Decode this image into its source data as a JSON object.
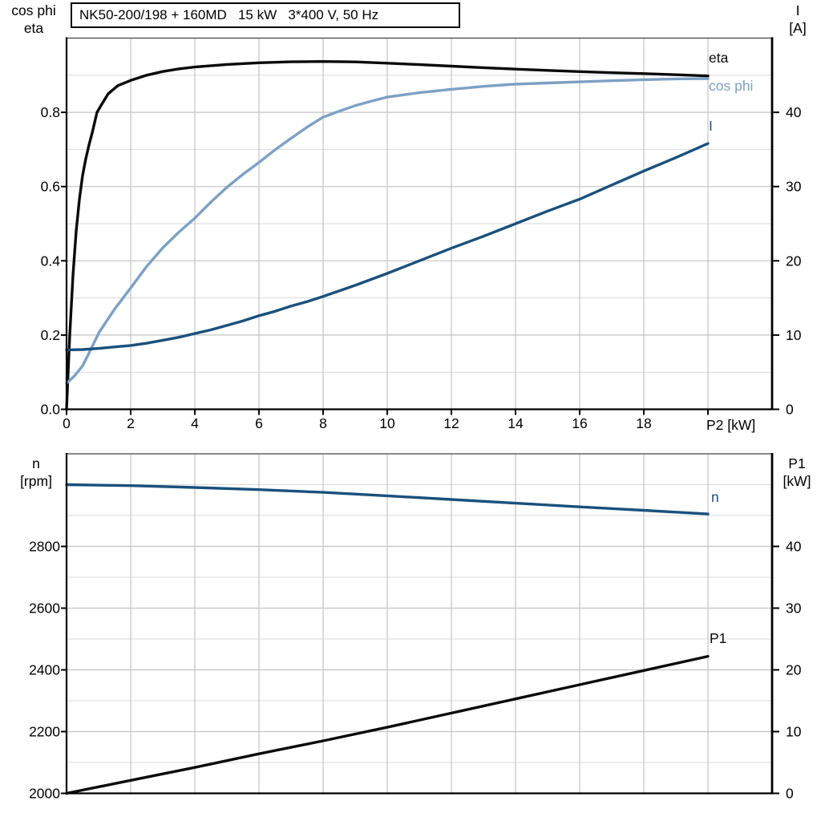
{
  "colors": {
    "black": "#0a0a0a",
    "dark_blue": "#1A507C",
    "light_blue": "#7DA0C4",
    "grid_major": "#c3c3c3",
    "grid_minor": "#dadada",
    "axis": "#000000",
    "frame_top": "#444444"
  },
  "chart_data": [
    {
      "type": "line",
      "title": "NK50-200/198 + 160MD   15 kW   3*400 V, 50 Hz",
      "xlabel": "P2 [kW]",
      "xlim": [
        0,
        22
      ],
      "x_ticks": [
        0,
        2,
        4,
        6,
        8,
        10,
        12,
        14,
        16,
        18,
        20
      ],
      "x_tick_labels": [
        "0",
        "2",
        "4",
        "6",
        "8",
        "10",
        "12",
        "14",
        "16",
        "18",
        ""
      ],
      "grid": "on",
      "legend_position": "right-inside",
      "left_axis": {
        "title_lines": [
          "cos phi",
          "eta"
        ],
        "lim": [
          0,
          1.0
        ],
        "tick_values": [
          0,
          0.2,
          0.4,
          0.6,
          0.8
        ],
        "tick_labels": [
          "0.0",
          "0.2",
          "0.4",
          "0.6",
          "0.8"
        ],
        "major_gridlines": [
          0.2,
          0.4,
          0.6,
          0.8
        ],
        "minor_gridlines": [
          0.1,
          0.3,
          0.5,
          0.7,
          0.9
        ]
      },
      "right_axis": {
        "title_lines": [
          "I",
          "[A]"
        ],
        "lim": [
          0,
          50
        ],
        "tick_values": [
          0,
          10,
          20,
          30,
          40
        ],
        "tick_labels": [
          "0",
          "10",
          "20",
          "30",
          "40"
        ]
      },
      "series": [
        {
          "name": "eta",
          "axis": "left",
          "color_key": "black",
          "points": [
            [
              0,
              0
            ],
            [
              0.1,
              0.2
            ],
            [
              0.2,
              0.36
            ],
            [
              0.3,
              0.48
            ],
            [
              0.4,
              0.565
            ],
            [
              0.5,
              0.63
            ],
            [
              0.6,
              0.675
            ],
            [
              0.7,
              0.712
            ],
            [
              0.8,
              0.745
            ],
            [
              0.95,
              0.8
            ],
            [
              1.1,
              0.822
            ],
            [
              1.3,
              0.85
            ],
            [
              1.6,
              0.872
            ],
            [
              2,
              0.886
            ],
            [
              2.5,
              0.9
            ],
            [
              3,
              0.91
            ],
            [
              3.5,
              0.917
            ],
            [
              4,
              0.922
            ],
            [
              5,
              0.929
            ],
            [
              6,
              0.9335
            ],
            [
              7,
              0.936
            ],
            [
              8,
              0.937
            ],
            [
              9,
              0.9358
            ],
            [
              10,
              0.9325
            ],
            [
              11,
              0.9285
            ],
            [
              12,
              0.9243
            ],
            [
              13,
              0.9203
            ],
            [
              14,
              0.9165
            ],
            [
              15,
              0.913
            ],
            [
              16,
              0.9098
            ],
            [
              17,
              0.9068
            ],
            [
              18,
              0.9043
            ],
            [
              19,
              0.9012
            ],
            [
              20,
              0.898
            ]
          ]
        },
        {
          "name": "cos phi",
          "axis": "left",
          "color_key": "light_blue",
          "points": [
            [
              0,
              0.07
            ],
            [
              0.25,
              0.09
            ],
            [
              0.5,
              0.117
            ],
            [
              0.75,
              0.16
            ],
            [
              1,
              0.205
            ],
            [
              1.25,
              0.238
            ],
            [
              1.5,
              0.27
            ],
            [
              2,
              0.327
            ],
            [
              2.5,
              0.385
            ],
            [
              3,
              0.435
            ],
            [
              3.5,
              0.477
            ],
            [
              4,
              0.515
            ],
            [
              4.5,
              0.558
            ],
            [
              5,
              0.598
            ],
            [
              5.5,
              0.633
            ],
            [
              6,
              0.665
            ],
            [
              6.5,
              0.699
            ],
            [
              7,
              0.73
            ],
            [
              7.5,
              0.76
            ],
            [
              8,
              0.787
            ],
            [
              8.5,
              0.803
            ],
            [
              9,
              0.818
            ],
            [
              9.5,
              0.83
            ],
            [
              10,
              0.841
            ],
            [
              11,
              0.853
            ],
            [
              12,
              0.862
            ],
            [
              13,
              0.87
            ],
            [
              14,
              0.876
            ],
            [
              15,
              0.879
            ],
            [
              16,
              0.882
            ],
            [
              17,
              0.885
            ],
            [
              18,
              0.888
            ],
            [
              19,
              0.89
            ],
            [
              20,
              0.891
            ]
          ]
        },
        {
          "name": "I",
          "axis": "right",
          "color_key": "dark_blue",
          "points": [
            [
              0,
              8
            ],
            [
              0.5,
              8.05
            ],
            [
              1,
              8.2
            ],
            [
              1.5,
              8.4
            ],
            [
              2,
              8.6
            ],
            [
              2.5,
              8.9
            ],
            [
              3,
              9.3
            ],
            [
              3.5,
              9.7
            ],
            [
              4,
              10.2
            ],
            [
              4.5,
              10.7
            ],
            [
              5,
              11.3
            ],
            [
              5.5,
              11.9
            ],
            [
              6,
              12.6
            ],
            [
              6.5,
              13.2
            ],
            [
              7,
              13.9
            ],
            [
              7.5,
              14.5
            ],
            [
              8,
              15.2
            ],
            [
              9,
              16.7
            ],
            [
              10,
              18.3
            ],
            [
              11,
              20
            ],
            [
              12,
              21.7
            ],
            [
              13,
              23.3
            ],
            [
              14,
              25
            ],
            [
              15,
              26.7
            ],
            [
              16,
              28.3
            ],
            [
              17,
              30.2
            ],
            [
              18,
              32.1
            ],
            [
              19,
              33.9
            ],
            [
              20,
              35.8
            ]
          ]
        }
      ]
    },
    {
      "type": "line",
      "title": "",
      "xlabel": "",
      "xlim": [
        0,
        22
      ],
      "x_ticks": [
        0,
        2,
        4,
        6,
        8,
        10,
        12,
        14,
        16,
        18,
        20
      ],
      "x_tick_labels": null,
      "grid": "on",
      "left_axis": {
        "title_lines": [
          "n",
          "[rpm]"
        ],
        "lim": [
          2000,
          3100
        ],
        "tick_values": [
          2000,
          2200,
          2400,
          2600,
          2800
        ],
        "tick_labels": [
          "2000",
          "2200",
          "2400",
          "2600",
          "2800"
        ],
        "major_gridlines": [
          2200,
          2400,
          2600,
          2800
        ],
        "minor_gridlines": [
          2100,
          2300,
          2500,
          2700,
          2900,
          3000
        ]
      },
      "right_axis": {
        "title_lines": [
          "P1",
          "[kW]"
        ],
        "lim": [
          0,
          55
        ],
        "tick_values": [
          0,
          10,
          20,
          30,
          40
        ],
        "tick_labels": [
          "0",
          "10",
          "20",
          "30",
          "40"
        ]
      },
      "series": [
        {
          "name": "n",
          "axis": "left",
          "color_key": "dark_blue",
          "points": [
            [
              0,
              3000
            ],
            [
              2,
              2997
            ],
            [
              4,
              2991
            ],
            [
              6,
              2984
            ],
            [
              8,
              2975
            ],
            [
              10,
              2964
            ],
            [
              12,
              2952
            ],
            [
              14,
              2940
            ],
            [
              16,
              2928
            ],
            [
              18,
              2917
            ],
            [
              20,
              2905
            ]
          ]
        },
        {
          "name": "P1",
          "axis": "right",
          "color_key": "black",
          "points": [
            [
              0,
              0
            ],
            [
              2,
              2.1
            ],
            [
              4,
              4.2
            ],
            [
              6,
              6.4
            ],
            [
              8,
              8.5
            ],
            [
              10,
              10.7
            ],
            [
              12,
              13.0
            ],
            [
              14,
              15.3
            ],
            [
              16,
              17.6
            ],
            [
              18,
              19.9
            ],
            [
              20,
              22.2
            ]
          ]
        }
      ]
    }
  ]
}
